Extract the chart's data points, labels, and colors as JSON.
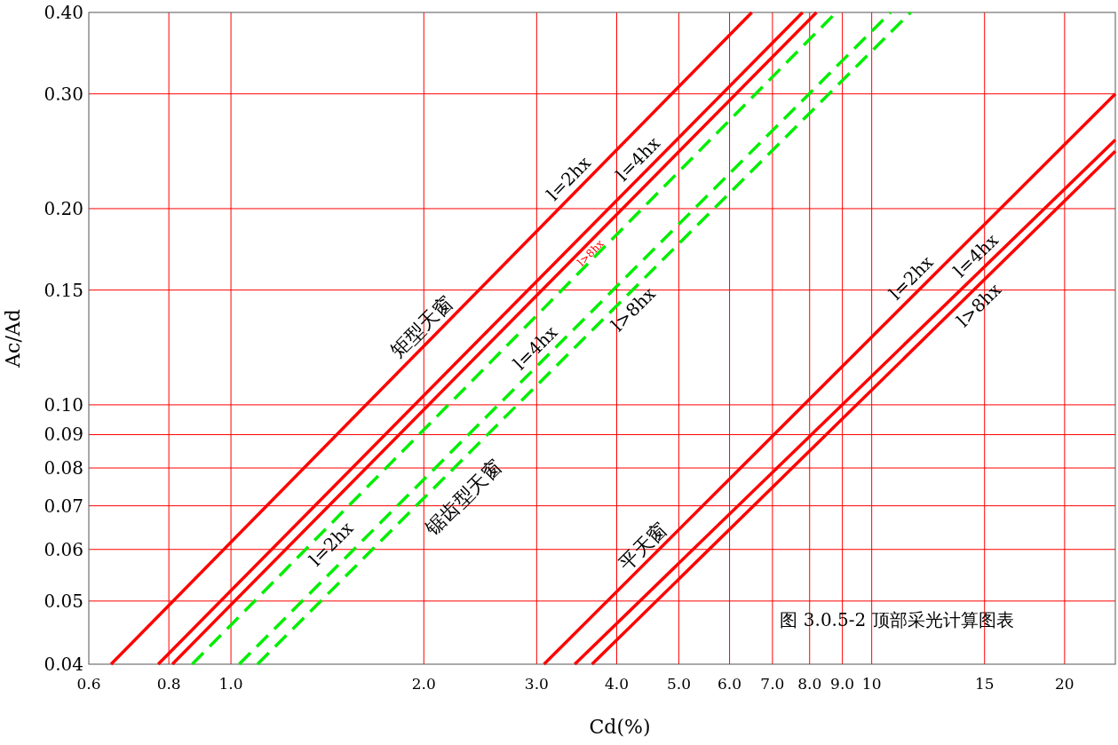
{
  "chart_data": {
    "type": "line",
    "title": "图 3.0.5-2  顶部采光计算图表",
    "xlabel": "Cd(%)",
    "ylabel": "Ac/Ad",
    "log": "xy",
    "grid": true,
    "xlim": [
      0.6,
      24
    ],
    "ylim": [
      0.04,
      0.4
    ],
    "xticks": [
      0.6,
      0.8,
      {
        "value": 1,
        "label": "1.0"
      },
      {
        "value": 2,
        "label": "2.0"
      },
      {
        "value": 3,
        "label": "3.0"
      },
      {
        "value": 4,
        "label": "4.0"
      },
      {
        "value": 5,
        "label": "5.0"
      },
      {
        "value": 6,
        "label": "6.0"
      },
      {
        "value": 7,
        "label": "7.0"
      },
      {
        "value": 8,
        "label": "8.0"
      },
      {
        "value": 9,
        "label": "9.0"
      },
      10,
      15,
      20
    ],
    "yticks": [
      0.04,
      0.05,
      0.06,
      0.07,
      0.08,
      0.09,
      {
        "value": 0.1,
        "label": "0.10"
      },
      0.15,
      {
        "value": 0.2,
        "label": "0.20"
      },
      {
        "value": 0.3,
        "label": "0.30"
      },
      {
        "value": 0.4,
        "label": "0.40"
      }
    ],
    "annotations": [
      "矩型天窗",
      "锯齿型天窗",
      "平天窗"
    ],
    "series": [
      {
        "name": "l=2hx",
        "color": "#ff0000",
        "line_style": "solid",
        "x": [
          0.65,
          6.5
        ],
        "values": [
          0.04,
          0.4
        ]
      },
      {
        "name": "l=4hx",
        "color": "#ff0000",
        "line_style": "solid",
        "x": [
          0.77,
          7.8
        ],
        "values": [
          0.04,
          0.4
        ]
      },
      {
        "name": "l>8hx",
        "color": "#ff0000",
        "line_style": "solid",
        "x": [
          0.81,
          8.2
        ],
        "values": [
          0.04,
          0.4
        ]
      },
      {
        "name": "l=2hx",
        "color": "#00ee00",
        "line_style": "dashed",
        "x": [
          0.87,
          8.8
        ],
        "values": [
          0.04,
          0.4
        ]
      },
      {
        "name": "l=4hx",
        "color": "#00ee00",
        "line_style": "dashed",
        "x": [
          1.03,
          10.7
        ],
        "values": [
          0.04,
          0.4
        ]
      },
      {
        "name": "l>8hx",
        "color": "#00ee00",
        "line_style": "dashed",
        "x": [
          1.1,
          11.5
        ],
        "values": [
          0.04,
          0.4
        ]
      },
      {
        "name": "l=2hx",
        "color": "#ff0000",
        "line_style": "solid",
        "x": [
          3.08,
          24
        ],
        "values": [
          0.04,
          0.3
        ]
      },
      {
        "name": "l=4hx",
        "color": "#ff0000",
        "line_style": "solid",
        "x": [
          3.44,
          24
        ],
        "values": [
          0.04,
          0.255
        ]
      },
      {
        "name": "l>8hx",
        "color": "#ff0000",
        "line_style": "solid",
        "x": [
          3.66,
          24
        ],
        "values": [
          0.04,
          0.245
        ]
      }
    ]
  }
}
